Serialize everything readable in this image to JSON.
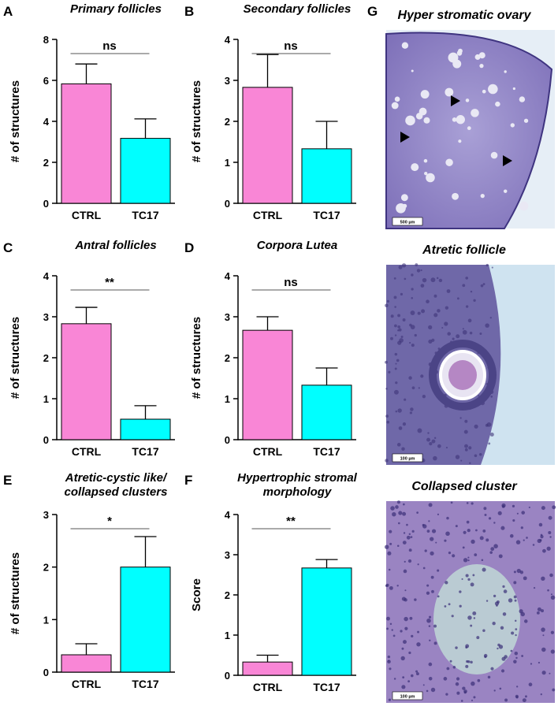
{
  "chart_data": [
    {
      "type": "bar",
      "panel": "A",
      "title": "Primary follicles",
      "ylabel": "# of structures",
      "categories": [
        "CTRL",
        "TC17"
      ],
      "values": [
        5.83,
        3.17
      ],
      "errors": [
        0.97,
        0.95
      ],
      "colors": [
        "#f986d6",
        "#00ffff"
      ],
      "ylim": [
        0,
        8
      ],
      "yticks": [
        0,
        2,
        4,
        6,
        8
      ],
      "annotation": "ns"
    },
    {
      "type": "bar",
      "panel": "B",
      "title": "Secondary follicles",
      "ylabel": "# of structures",
      "categories": [
        "CTRL",
        "TC17"
      ],
      "values": [
        2.83,
        1.33
      ],
      "errors": [
        0.8,
        0.67
      ],
      "colors": [
        "#f986d6",
        "#00ffff"
      ],
      "ylim": [
        0,
        4
      ],
      "yticks": [
        0,
        1,
        2,
        3,
        4
      ],
      "annotation": "ns"
    },
    {
      "type": "bar",
      "panel": "C",
      "title": "Antral follicles",
      "ylabel": "# of structures",
      "categories": [
        "CTRL",
        "TC17"
      ],
      "values": [
        2.83,
        0.5
      ],
      "errors": [
        0.4,
        0.33
      ],
      "colors": [
        "#f986d6",
        "#00ffff"
      ],
      "ylim": [
        0,
        4
      ],
      "yticks": [
        0,
        1,
        2,
        3,
        4
      ],
      "annotation": "**"
    },
    {
      "type": "bar",
      "panel": "D",
      "title": "Corpora Lutea",
      "ylabel": "# of structures",
      "categories": [
        "CTRL",
        "TC17"
      ],
      "values": [
        2.67,
        1.33
      ],
      "errors": [
        0.33,
        0.42
      ],
      "colors": [
        "#f986d6",
        "#00ffff"
      ],
      "ylim": [
        0,
        4
      ],
      "yticks": [
        0,
        1,
        2,
        3,
        4
      ],
      "annotation": "ns"
    },
    {
      "type": "bar",
      "panel": "E",
      "title": "Atretic-cystic like/ collapsed clusters",
      "ylabel": "# of structures",
      "categories": [
        "CTRL",
        "TC17"
      ],
      "values": [
        0.33,
        2.0
      ],
      "errors": [
        0.21,
        0.58
      ],
      "colors": [
        "#f986d6",
        "#00ffff"
      ],
      "ylim": [
        0,
        3
      ],
      "yticks": [
        0,
        1,
        2,
        3
      ],
      "annotation": "*"
    },
    {
      "type": "bar",
      "panel": "F",
      "title": "Hypertrophic stromal morphology",
      "ylabel": "Score",
      "categories": [
        "CTRL",
        "TC17"
      ],
      "values": [
        0.33,
        2.67
      ],
      "errors": [
        0.17,
        0.21
      ],
      "colors": [
        "#f986d6",
        "#00ffff"
      ],
      "ylim": [
        0,
        4
      ],
      "yticks": [
        0,
        1,
        2,
        3,
        4
      ],
      "annotation": "**"
    }
  ],
  "panel_g": {
    "label": "G",
    "images": [
      {
        "title": "Hyper stromatic ovary",
        "scale_bar": "500 µm"
      },
      {
        "title": "Atretic follicle",
        "scale_bar": "100 µm"
      },
      {
        "title": "Collapsed cluster",
        "scale_bar": "100 µm"
      }
    ]
  }
}
